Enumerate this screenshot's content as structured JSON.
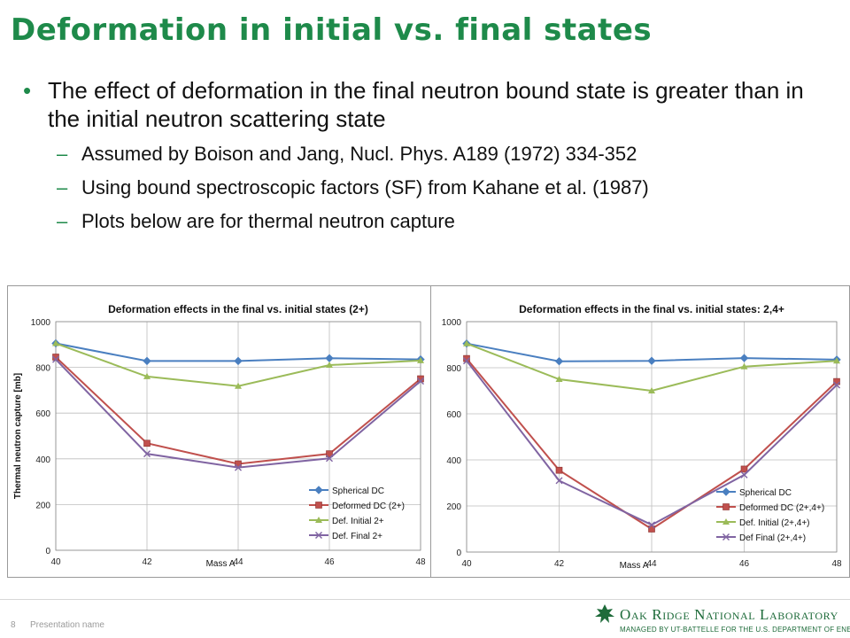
{
  "slide": {
    "title": "Deformation in initial vs. final states",
    "bullet": "The effect of deformation in the final neutron bound state is greater than in the initial neutron scattering state",
    "sub_bullets": [
      "Assumed by Boison and Jang, Nucl. Phys. A189 (1972) 334-352",
      "Using bound spectroscopic factors (SF) from Kahane et al. (1987)",
      "Plots below are for thermal neutron capture"
    ],
    "dot": "•",
    "dash": "–"
  },
  "footer": {
    "page": "8",
    "presentation": "Presentation name",
    "lab_name": "Oak Ridge National Laboratory",
    "lab_sub": "MANAGED BY UT-BATTELLE FOR THE U.S. DEPARTMENT OF ENERGY"
  },
  "colors": {
    "title": "#1e8a4a",
    "spherical": "#4a7fc0",
    "deformed": "#c0504d",
    "def_initial": "#9bbb59",
    "def_final": "#8064a2"
  },
  "chart_data": [
    {
      "type": "line",
      "title": "Deformation effects in the final vs. initial states (2+)",
      "xlabel": "Mass A",
      "ylabel": "Thermal neutron capture [mb]",
      "x": [
        40,
        42,
        44,
        46,
        48
      ],
      "x_ticks": [
        "40",
        "42",
        "44",
        "46",
        "48"
      ],
      "y_ticks": [
        "0",
        "200",
        "400",
        "600",
        "800",
        "1000"
      ],
      "xlim": [
        40,
        48
      ],
      "ylim": [
        0,
        1000
      ],
      "grid": true,
      "legend": "bottom-right",
      "series": [
        {
          "name": "Spherical DC",
          "values": [
            905,
            828,
            828,
            840,
            835
          ],
          "color": "#4a7fc0",
          "marker": "diamond"
        },
        {
          "name": "Deformed DC (2+)",
          "values": [
            845,
            468,
            378,
            422,
            750
          ],
          "color": "#c0504d",
          "marker": "square"
        },
        {
          "name": "Def. Initial 2+",
          "values": [
            905,
            760,
            718,
            810,
            830
          ],
          "color": "#9bbb59",
          "marker": "triangle"
        },
        {
          "name": "Def. Final 2+",
          "values": [
            835,
            422,
            362,
            402,
            740
          ],
          "color": "#8064a2",
          "marker": "x"
        }
      ]
    },
    {
      "type": "line",
      "title": "Deformation effects in the final vs. initial states: 2,4+",
      "xlabel": "Mass A",
      "ylabel": "",
      "x": [
        40,
        42,
        44,
        46,
        48
      ],
      "x_ticks": [
        "40",
        "42",
        "44",
        "46",
        "48"
      ],
      "y_ticks": [
        "0",
        "200",
        "400",
        "600",
        "800",
        "1000"
      ],
      "xlim": [
        40,
        48
      ],
      "ylim": [
        0,
        1000
      ],
      "grid": true,
      "legend": "bottom-right",
      "series": [
        {
          "name": "Spherical DC",
          "values": [
            905,
            828,
            830,
            842,
            835
          ],
          "color": "#4a7fc0",
          "marker": "diamond"
        },
        {
          "name": "Deformed DC (2+,4+)",
          "values": [
            840,
            355,
            100,
            360,
            740
          ],
          "color": "#c0504d",
          "marker": "square"
        },
        {
          "name": "Def. Initial (2+,4+)",
          "values": [
            905,
            750,
            700,
            805,
            830
          ],
          "color": "#9bbb59",
          "marker": "triangle"
        },
        {
          "name": "Def Final (2+,4+)",
          "values": [
            830,
            310,
            118,
            335,
            725
          ],
          "color": "#8064a2",
          "marker": "x"
        }
      ]
    }
  ]
}
